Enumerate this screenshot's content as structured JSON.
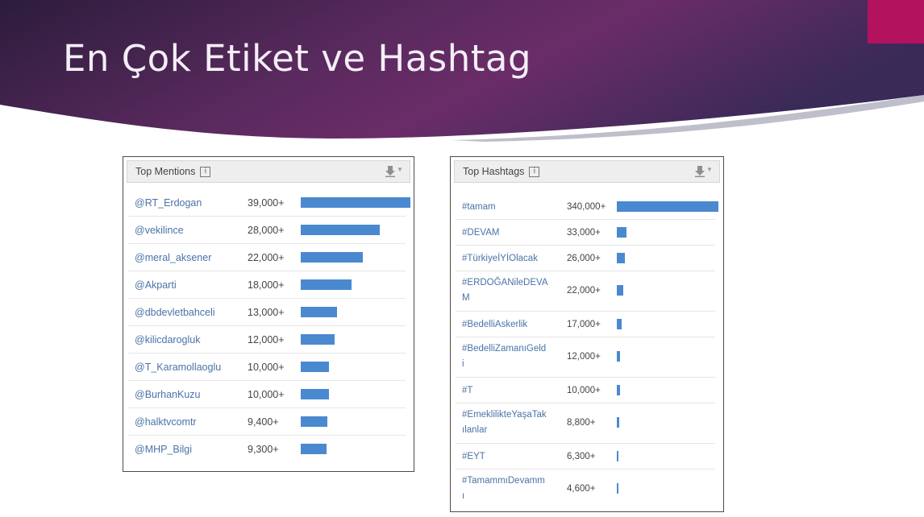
{
  "slide": {
    "title": "En Çok Etiket ve Hashtag"
  },
  "colors": {
    "banner_dark": "#2c1c3c",
    "banner_mid": "#6a2c68",
    "accent": "#b3125f",
    "bar": "#4a89d0",
    "link": "#4a73a8"
  },
  "mentions": {
    "title": "Top Mentions",
    "info_icon": "info-icon",
    "export_icon": "download-icon",
    "max_value": 39000,
    "rows": [
      {
        "name": "@RT_Erdogan",
        "count": "39,000+",
        "value": 39000
      },
      {
        "name": "@vekilince",
        "count": "28,000+",
        "value": 28000
      },
      {
        "name": "@meral_aksener",
        "count": "22,000+",
        "value": 22000
      },
      {
        "name": "@Akparti",
        "count": "18,000+",
        "value": 18000
      },
      {
        "name": "@dbdevletbahceli",
        "count": "13,000+",
        "value": 13000
      },
      {
        "name": "@kilicdarogluk",
        "count": "12,000+",
        "value": 12000
      },
      {
        "name": "@T_Karamollaoglu",
        "count": "10,000+",
        "value": 10000
      },
      {
        "name": "@BurhanKuzu",
        "count": "10,000+",
        "value": 10000
      },
      {
        "name": "@halktvcomtr",
        "count": "9,400+",
        "value": 9400
      },
      {
        "name": "@MHP_Bilgi",
        "count": "9,300+",
        "value": 9300
      }
    ]
  },
  "hashtags": {
    "title": "Top Hashtags",
    "info_icon": "info-icon",
    "export_icon": "download-icon",
    "max_value": 340000,
    "rows": [
      {
        "line1": "#tamam",
        "line2": "",
        "count": "340,000+",
        "value": 340000
      },
      {
        "line1": "#DEVAM",
        "line2": "",
        "count": "33,000+",
        "value": 33000
      },
      {
        "line1": "#TürkiyeİYİOlacak",
        "line2": "",
        "count": "26,000+",
        "value": 26000
      },
      {
        "line1": "#ERDOĞANileDEVA",
        "line2": "M",
        "count": "22,000+",
        "value": 22000
      },
      {
        "line1": "#BedelliAskerlik",
        "line2": "",
        "count": "17,000+",
        "value": 17000
      },
      {
        "line1": "#BedelliZamanıGeld",
        "line2": "i",
        "count": "12,000+",
        "value": 12000
      },
      {
        "line1": "#T",
        "line2": "",
        "count": "10,000+",
        "value": 10000
      },
      {
        "line1": "#EmeklilikteYaşaTak",
        "line2": "ılanlar",
        "count": "8,800+",
        "value": 8800
      },
      {
        "line1": "#EYT",
        "line2": "",
        "count": "6,300+",
        "value": 6300
      },
      {
        "line1": "#TamammıDevamm",
        "line2": "ı",
        "count": "4,600+",
        "value": 4600
      }
    ]
  }
}
